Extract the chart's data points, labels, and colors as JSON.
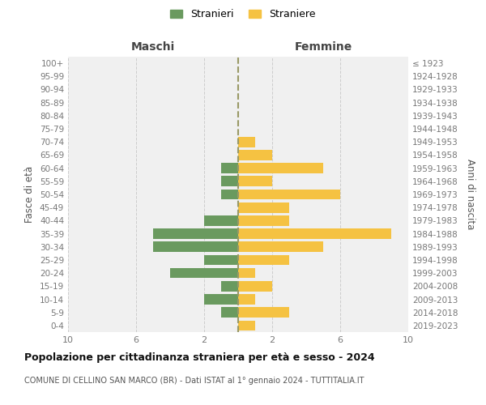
{
  "age_groups": [
    "0-4",
    "5-9",
    "10-14",
    "15-19",
    "20-24",
    "25-29",
    "30-34",
    "35-39",
    "40-44",
    "45-49",
    "50-54",
    "55-59",
    "60-64",
    "65-69",
    "70-74",
    "75-79",
    "80-84",
    "85-89",
    "90-94",
    "95-99",
    "100+"
  ],
  "birth_years": [
    "2019-2023",
    "2014-2018",
    "2009-2013",
    "2004-2008",
    "1999-2003",
    "1994-1998",
    "1989-1993",
    "1984-1988",
    "1979-1983",
    "1974-1978",
    "1969-1973",
    "1964-1968",
    "1959-1963",
    "1954-1958",
    "1949-1953",
    "1944-1948",
    "1939-1943",
    "1934-1938",
    "1929-1933",
    "1924-1928",
    "≤ 1923"
  ],
  "males": [
    0,
    1,
    2,
    1,
    4,
    2,
    5,
    5,
    2,
    0,
    1,
    1,
    1,
    0,
    0,
    0,
    0,
    0,
    0,
    0,
    0
  ],
  "females": [
    1,
    3,
    1,
    2,
    1,
    3,
    5,
    9,
    3,
    3,
    6,
    2,
    5,
    2,
    1,
    0,
    0,
    0,
    0,
    0,
    0
  ],
  "male_color": "#6a9a5f",
  "female_color": "#f5c242",
  "background_color": "#f0f0f0",
  "grid_color": "#cccccc",
  "title": "Popolazione per cittadinanza straniera per età e sesso - 2024",
  "subtitle": "COMUNE DI CELLINO SAN MARCO (BR) - Dati ISTAT al 1° gennaio 2024 - TUTTITALIA.IT",
  "xlabel_left": "Maschi",
  "xlabel_right": "Femmine",
  "ylabel_left": "Fasce di età",
  "ylabel_right": "Anni di nascita",
  "legend_male": "Stranieri",
  "legend_female": "Straniere",
  "xlim": 10,
  "dashed_line_color": "#999966"
}
